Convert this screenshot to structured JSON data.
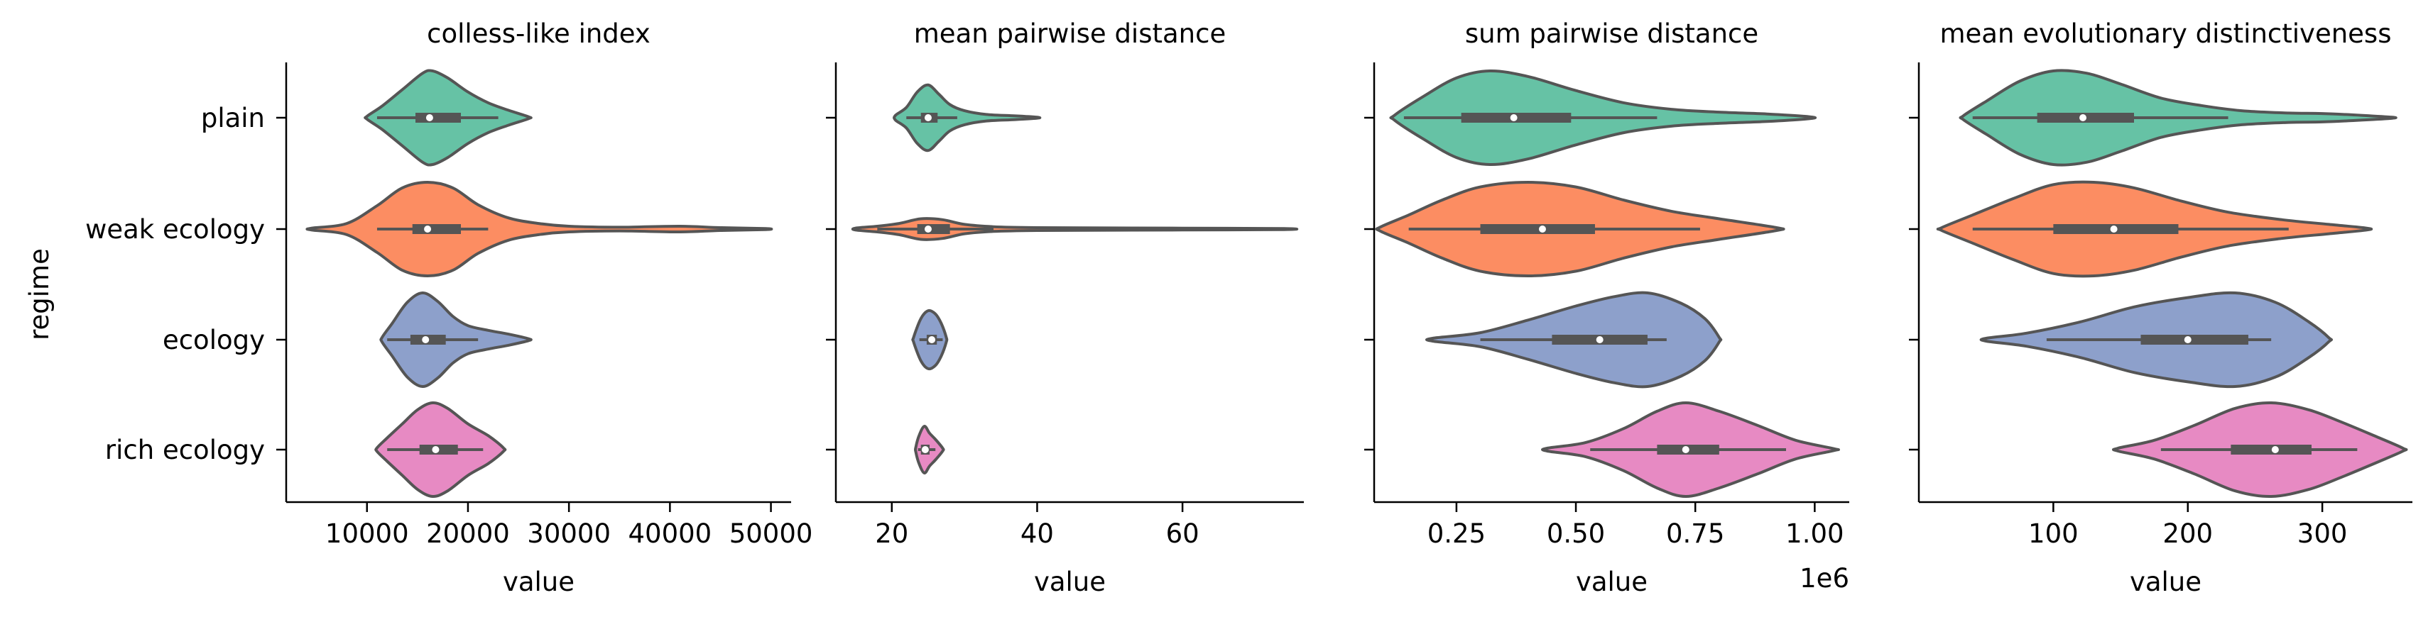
{
  "chart_data": {
    "type": "violin",
    "ylabel": "regime",
    "categories": [
      "plain",
      "weak ecology",
      "ecology",
      "rich ecology"
    ],
    "colors": [
      "#66c2a5",
      "#fc8d62",
      "#8da0cb",
      "#e78ac3"
    ],
    "panels": [
      {
        "title": "colless-like index",
        "xlabel": "value",
        "x_offset_label": "",
        "xlim": [
          2000,
          52000
        ],
        "xticks": [
          10000,
          20000,
          30000,
          40000,
          50000
        ],
        "xtick_labels": [
          "10000",
          "20000",
          "30000",
          "40000",
          "50000"
        ],
        "violins": [
          {
            "min": 10000,
            "max": 26000,
            "q1": 14800,
            "median": 16200,
            "q3": 19300,
            "whisker_low": 11000,
            "whisker_high": 23000,
            "profile": [
              [
                10000,
                0.03
              ],
              [
                11500,
                0.25
              ],
              [
                13500,
                0.6
              ],
              [
                15500,
                0.95
              ],
              [
                16500,
                1.0
              ],
              [
                18000,
                0.85
              ],
              [
                20000,
                0.55
              ],
              [
                22000,
                0.32
              ],
              [
                24000,
                0.16
              ],
              [
                26000,
                0.02
              ]
            ]
          },
          {
            "min": 4500,
            "max": 49500,
            "q1": 14500,
            "median": 16000,
            "q3": 19300,
            "whisker_low": 11000,
            "whisker_high": 22000,
            "profile": [
              [
                4500,
                0.02
              ],
              [
                8000,
                0.12
              ],
              [
                11000,
                0.5
              ],
              [
                13500,
                0.88
              ],
              [
                16000,
                1.0
              ],
              [
                18500,
                0.88
              ],
              [
                21000,
                0.52
              ],
              [
                24000,
                0.24
              ],
              [
                27000,
                0.12
              ],
              [
                30000,
                0.06
              ],
              [
                35000,
                0.04
              ],
              [
                41000,
                0.06
              ],
              [
                45000,
                0.03
              ],
              [
                49500,
                0.01
              ]
            ]
          },
          {
            "min": 11500,
            "max": 26000,
            "q1": 14300,
            "median": 15800,
            "q3": 17800,
            "whisker_low": 12000,
            "whisker_high": 21000,
            "profile": [
              [
                11500,
                0.05
              ],
              [
                12500,
                0.35
              ],
              [
                14000,
                0.8
              ],
              [
                15500,
                1.0
              ],
              [
                17000,
                0.82
              ],
              [
                18500,
                0.5
              ],
              [
                20000,
                0.3
              ],
              [
                22000,
                0.2
              ],
              [
                24000,
                0.12
              ],
              [
                26000,
                0.02
              ]
            ]
          },
          {
            "min": 11000,
            "max": 23500,
            "q1": 15200,
            "median": 16800,
            "q3": 19000,
            "whisker_low": 12000,
            "whisker_high": 21500,
            "profile": [
              [
                11000,
                0.04
              ],
              [
                12000,
                0.25
              ],
              [
                13500,
                0.55
              ],
              [
                15000,
                0.85
              ],
              [
                16500,
                1.0
              ],
              [
                18000,
                0.88
              ],
              [
                20000,
                0.55
              ],
              [
                22000,
                0.3
              ],
              [
                23500,
                0.04
              ]
            ]
          }
        ]
      },
      {
        "title": "mean pairwise distance",
        "xlabel": "value",
        "x_offset_label": "",
        "xlim": [
          12.3,
          76.7
        ],
        "xticks": [
          20,
          40,
          60
        ],
        "xtick_labels": [
          "20",
          "40",
          "60"
        ],
        "violins": [
          {
            "min": 20.5,
            "max": 40.0,
            "q1": 24.0,
            "median": 25.0,
            "q3": 26.3,
            "whisker_low": 22.0,
            "whisker_high": 29.0,
            "profile": [
              [
                20.5,
                0.05
              ],
              [
                22,
                0.22
              ],
              [
                23.5,
                0.55
              ],
              [
                25,
                0.7
              ],
              [
                26.5,
                0.5
              ],
              [
                28,
                0.28
              ],
              [
                30,
                0.15
              ],
              [
                33,
                0.07
              ],
              [
                37,
                0.04
              ],
              [
                40,
                0.01
              ]
            ]
          },
          {
            "min": 15.0,
            "max": 74.0,
            "q1": 23.5,
            "median": 25.0,
            "q3": 28.0,
            "whisker_low": 18.0,
            "whisker_high": 34.0,
            "profile": [
              [
                15,
                0.02
              ],
              [
                18,
                0.06
              ],
              [
                21,
                0.12
              ],
              [
                24,
                0.22
              ],
              [
                27,
                0.2
              ],
              [
                30,
                0.1
              ],
              [
                34,
                0.05
              ],
              [
                40,
                0.03
              ],
              [
                50,
                0.025
              ],
              [
                60,
                0.02
              ],
              [
                74,
                0.01
              ]
            ]
          },
          {
            "min": 23.0,
            "max": 27.5,
            "q1": 24.8,
            "median": 25.5,
            "q3": 26.2,
            "whisker_low": 23.8,
            "whisker_high": 27.0,
            "profile": [
              [
                23,
                0.05
              ],
              [
                24,
                0.45
              ],
              [
                25,
                0.62
              ],
              [
                26,
                0.55
              ],
              [
                26.8,
                0.35
              ],
              [
                27.5,
                0.05
              ]
            ]
          },
          {
            "min": 23.3,
            "max": 27.0,
            "q1": 24.0,
            "median": 24.6,
            "q3": 25.2,
            "whisker_low": 23.6,
            "whisker_high": 26.0,
            "profile": [
              [
                23.3,
                0.05
              ],
              [
                23.8,
                0.32
              ],
              [
                24.5,
                0.5
              ],
              [
                25.2,
                0.35
              ],
              [
                26,
                0.22
              ],
              [
                27,
                0.03
              ]
            ]
          }
        ]
      },
      {
        "title": "sum pairwise distance",
        "xlabel": "value",
        "x_offset_label": "1e6",
        "xlim": [
          0.0777,
          1.0723
        ],
        "xticks": [
          0.25,
          0.5,
          0.75,
          1.0
        ],
        "xtick_labels": [
          "0.25",
          "0.50",
          "0.75",
          "1.00"
        ],
        "violins": [
          {
            "min": 0.12,
            "max": 0.99,
            "q1": 0.26,
            "median": 0.37,
            "q3": 0.49,
            "whisker_low": 0.14,
            "whisker_high": 0.67,
            "profile": [
              [
                0.12,
                0.05
              ],
              [
                0.18,
                0.45
              ],
              [
                0.25,
                0.85
              ],
              [
                0.32,
                1.0
              ],
              [
                0.4,
                0.88
              ],
              [
                0.5,
                0.58
              ],
              [
                0.6,
                0.32
              ],
              [
                0.7,
                0.18
              ],
              [
                0.8,
                0.12
              ],
              [
                0.9,
                0.08
              ],
              [
                0.99,
                0.02
              ]
            ]
          },
          {
            "min": 0.09,
            "max": 0.92,
            "q1": 0.3,
            "median": 0.43,
            "q3": 0.54,
            "whisker_low": 0.15,
            "whisker_high": 0.76,
            "profile": [
              [
                0.09,
                0.04
              ],
              [
                0.15,
                0.3
              ],
              [
                0.22,
                0.62
              ],
              [
                0.3,
                0.9
              ],
              [
                0.4,
                1.0
              ],
              [
                0.5,
                0.9
              ],
              [
                0.6,
                0.62
              ],
              [
                0.7,
                0.38
              ],
              [
                0.8,
                0.22
              ],
              [
                0.92,
                0.03
              ]
            ]
          },
          {
            "min": 0.2,
            "max": 0.8,
            "q1": 0.45,
            "median": 0.55,
            "q3": 0.65,
            "whisker_low": 0.3,
            "whisker_high": 0.69,
            "profile": [
              [
                0.2,
                0.03
              ],
              [
                0.3,
                0.15
              ],
              [
                0.4,
                0.42
              ],
              [
                0.5,
                0.72
              ],
              [
                0.58,
                0.92
              ],
              [
                0.65,
                1.0
              ],
              [
                0.72,
                0.78
              ],
              [
                0.77,
                0.45
              ],
              [
                0.8,
                0.05
              ]
            ]
          },
          {
            "min": 0.44,
            "max": 1.04,
            "q1": 0.67,
            "median": 0.73,
            "q3": 0.8,
            "whisker_low": 0.53,
            "whisker_high": 0.94,
            "profile": [
              [
                0.44,
                0.03
              ],
              [
                0.52,
                0.15
              ],
              [
                0.6,
                0.45
              ],
              [
                0.67,
                0.82
              ],
              [
                0.73,
                1.0
              ],
              [
                0.8,
                0.82
              ],
              [
                0.88,
                0.52
              ],
              [
                0.96,
                0.2
              ],
              [
                1.04,
                0.02
              ]
            ]
          }
        ]
      },
      {
        "title": "mean evolutionary distinctiveness",
        "xlabel": "value",
        "x_offset_label": "",
        "xlim": [
          0,
          367
        ],
        "xticks": [
          100,
          200,
          300
        ],
        "xtick_labels": [
          "100",
          "200",
          "300"
        ],
        "violins": [
          {
            "min": 33,
            "max": 352,
            "q1": 88,
            "median": 122,
            "q3": 160,
            "whisker_low": 40,
            "whisker_high": 230,
            "profile": [
              [
                33,
                0.04
              ],
              [
                50,
                0.35
              ],
              [
                75,
                0.78
              ],
              [
                100,
                1.0
              ],
              [
                125,
                0.95
              ],
              [
                150,
                0.72
              ],
              [
                180,
                0.42
              ],
              [
                210,
                0.26
              ],
              [
                240,
                0.15
              ],
              [
                275,
                0.1
              ],
              [
                300,
                0.09
              ],
              [
                330,
                0.05
              ],
              [
                352,
                0.01
              ]
            ]
          },
          {
            "min": 17,
            "max": 333,
            "q1": 100,
            "median": 145,
            "q3": 193,
            "whisker_low": 40,
            "whisker_high": 275,
            "profile": [
              [
                17,
                0.03
              ],
              [
                40,
                0.3
              ],
              [
                70,
                0.65
              ],
              [
                100,
                0.95
              ],
              [
                130,
                1.0
              ],
              [
                160,
                0.88
              ],
              [
                195,
                0.6
              ],
              [
                230,
                0.36
              ],
              [
                270,
                0.2
              ],
              [
                305,
                0.1
              ],
              [
                333,
                0.02
              ]
            ]
          },
          {
            "min": 50,
            "max": 305,
            "q1": 165,
            "median": 200,
            "q3": 245,
            "whisker_low": 95,
            "whisker_high": 262,
            "profile": [
              [
                50,
                0.03
              ],
              [
                80,
                0.14
              ],
              [
                120,
                0.38
              ],
              [
                160,
                0.7
              ],
              [
                200,
                0.9
              ],
              [
                235,
                1.0
              ],
              [
                265,
                0.8
              ],
              [
                290,
                0.38
              ],
              [
                305,
                0.04
              ]
            ]
          },
          {
            "min": 148,
            "max": 360,
            "q1": 232,
            "median": 265,
            "q3": 292,
            "whisker_low": 180,
            "whisker_high": 326,
            "profile": [
              [
                148,
                0.03
              ],
              [
                175,
                0.2
              ],
              [
                205,
                0.52
              ],
              [
                235,
                0.88
              ],
              [
                262,
                1.0
              ],
              [
                290,
                0.85
              ],
              [
                315,
                0.58
              ],
              [
                340,
                0.28
              ],
              [
                360,
                0.03
              ]
            ]
          }
        ]
      }
    ]
  }
}
